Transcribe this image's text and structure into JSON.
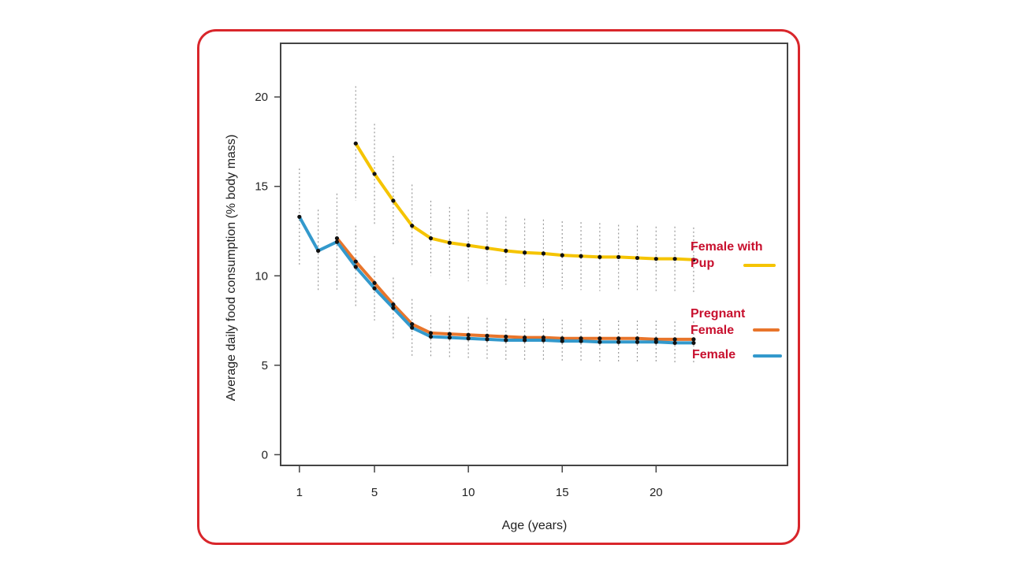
{
  "chart_data": {
    "type": "line",
    "xlabel": "Age (years)",
    "ylabel": "Average daily food consumption (% body mass)",
    "xlim": [
      0,
      27
    ],
    "ylim": [
      -0.6,
      23
    ],
    "x_ticks": [
      1,
      5,
      10,
      15,
      20
    ],
    "y_ticks": [
      0,
      5,
      10,
      15,
      20
    ],
    "grid": false,
    "legend_placement": "right",
    "border_color": "#d9262b",
    "legend_text_color": "#c8102e",
    "error_bar_color": "#9a9a9a",
    "series": [
      {
        "name": "Female with Pup",
        "legend_lines": [
          "Female with",
          "Pup"
        ],
        "color": "#f5c400",
        "x": [
          4,
          5,
          6,
          7,
          8,
          9,
          10,
          11,
          12,
          13,
          14,
          15,
          16,
          17,
          18,
          19,
          20,
          21,
          22
        ],
        "y": [
          17.4,
          15.7,
          14.2,
          12.8,
          12.1,
          11.85,
          11.7,
          11.55,
          11.4,
          11.3,
          11.25,
          11.15,
          11.1,
          11.05,
          11.05,
          11.0,
          10.95,
          10.95,
          10.9
        ],
        "err": [
          3.2,
          2.8,
          2.5,
          2.3,
          2.1,
          2.0,
          2.0,
          2.0,
          1.9,
          1.9,
          1.9,
          1.9,
          1.9,
          1.9,
          1.8,
          1.8,
          1.8,
          1.8,
          1.8
        ]
      },
      {
        "name": "Pregnant Female",
        "legend_lines": [
          "Pregnant",
          "Female"
        ],
        "color": "#e8752b",
        "x": [
          3,
          4,
          5,
          6,
          7,
          8,
          9,
          10,
          11,
          12,
          13,
          14,
          15,
          16,
          17,
          18,
          19,
          20,
          21,
          22
        ],
        "y": [
          12.1,
          10.8,
          9.6,
          8.4,
          7.3,
          6.8,
          6.75,
          6.7,
          6.65,
          6.6,
          6.55,
          6.55,
          6.5,
          6.5,
          6.5,
          6.5,
          6.5,
          6.45,
          6.45,
          6.45
        ],
        "err": []
      },
      {
        "name": "Female",
        "legend_lines": [
          "Female"
        ],
        "color": "#3399cc",
        "x": [
          1,
          2,
          3,
          4,
          5,
          6,
          7,
          8,
          9,
          10,
          11,
          12,
          13,
          14,
          15,
          16,
          17,
          18,
          19,
          20,
          21,
          22
        ],
        "y": [
          13.3,
          11.4,
          11.9,
          10.5,
          9.3,
          8.2,
          7.1,
          6.6,
          6.55,
          6.5,
          6.45,
          6.4,
          6.4,
          6.4,
          6.35,
          6.35,
          6.3,
          6.3,
          6.3,
          6.3,
          6.25,
          6.25
        ],
        "err": [
          2.7,
          2.3,
          2.7,
          2.3,
          1.8,
          1.7,
          1.6,
          1.2,
          1.2,
          1.2,
          1.2,
          1.2,
          1.2,
          1.2,
          1.2,
          1.2,
          1.2,
          1.2,
          1.2,
          1.2,
          1.2,
          1.2
        ]
      }
    ]
  }
}
